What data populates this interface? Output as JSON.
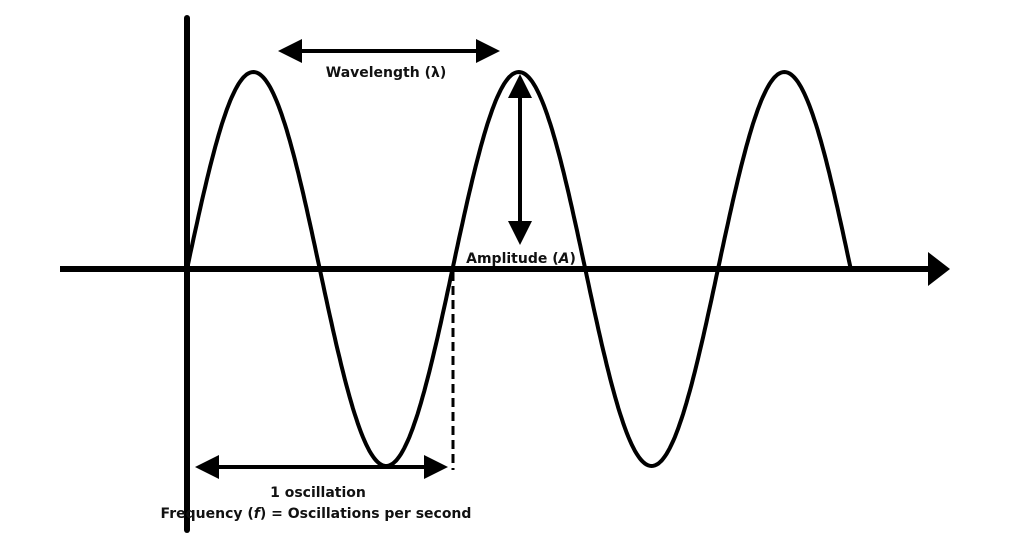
{
  "colors": {
    "stroke": "#000000",
    "text": "#111111",
    "background": "#ffffff"
  },
  "labels": {
    "wavelength": {
      "pre": "Wavelength (",
      "symbol": "λ",
      "post": ")"
    },
    "amplitude": {
      "pre": "Amplitude (",
      "symbol": "A",
      "post": ")"
    },
    "oscillation": "1 oscillation",
    "frequency": {
      "pre": "Frequency (",
      "symbol": "f",
      "post": ") = Oscillations per second"
    }
  },
  "wave": {
    "cycles": 2.5
  }
}
